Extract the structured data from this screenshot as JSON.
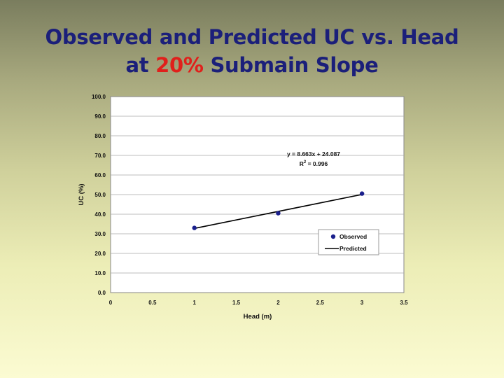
{
  "title": {
    "line1": "Observed and Predicted UC vs. Head",
    "line2_prefix": "at ",
    "line2_accent": "20%",
    "line2_suffix": " Submain Slope"
  },
  "colors": {
    "title": "#1b1f7a",
    "accent": "#e0201b",
    "observed_marker": "#1a1f8c",
    "predicted_line": "#000000"
  },
  "chart_data": {
    "type": "scatter",
    "xlabel": "Head (m)",
    "ylabel": "UC (%)",
    "xlim": [
      0,
      3.5
    ],
    "ylim": [
      0,
      100
    ],
    "x_ticks": [
      "0",
      "0.5",
      "1",
      "1.5",
      "2",
      "2.5",
      "3",
      "3.5"
    ],
    "y_ticks": [
      "0.0",
      "10.0",
      "20.0",
      "30.0",
      "40.0",
      "50.0",
      "60.0",
      "70.0",
      "80.0",
      "90.0",
      "100.0"
    ],
    "grid": "horizontal",
    "legend_position": "bottom-right",
    "series": [
      {
        "name": "Observed",
        "kind": "markers",
        "x": [
          1,
          2,
          3
        ],
        "y": [
          33.0,
          40.5,
          50.5
        ]
      },
      {
        "name": "Predicted",
        "kind": "line",
        "x": [
          1,
          3
        ],
        "y": [
          32.75,
          50.076
        ]
      }
    ],
    "annotation": {
      "equation": "y = 8.663x + 24.087",
      "r2_label": "R",
      "r2_sup": "2",
      "r2_value": " = 0.996"
    }
  }
}
